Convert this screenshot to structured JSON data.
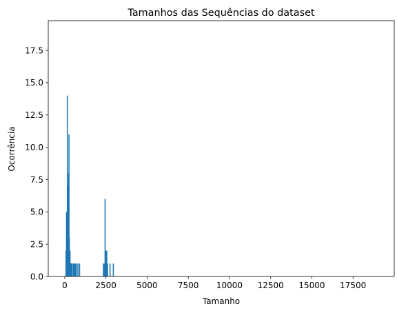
{
  "chart_data": {
    "type": "bar",
    "title": "Tamanhos das Sequências do dataset",
    "xlabel": "Tamanho",
    "ylabel": "Ocorrência",
    "xlim": [
      -1000,
      20000
    ],
    "ylim": [
      0,
      19.8
    ],
    "xticks": [
      0,
      2500,
      5000,
      7500,
      10000,
      12500,
      15000,
      17500
    ],
    "xtick_labels": [
      "0",
      "2500",
      "5000",
      "7500",
      "10000",
      "12500",
      "15000",
      "17500"
    ],
    "yticks": [
      0,
      2.5,
      5,
      7.5,
      10,
      12.5,
      15,
      17.5
    ],
    "ytick_labels": [
      "0.0",
      "2.5",
      "5.0",
      "7.5",
      "10.0",
      "12.5",
      "15.0",
      "17.5"
    ],
    "grid": false,
    "bar_color": "#1f77b4",
    "x": [
      80,
      110,
      140,
      160,
      180,
      200,
      220,
      240,
      260,
      280,
      300,
      320,
      340,
      360,
      380,
      420,
      460,
      540,
      600,
      650,
      700,
      800,
      900,
      2350,
      2400,
      2450,
      2500,
      2550,
      2600,
      2750,
      2950
    ],
    "values": [
      2,
      5,
      4,
      14,
      4,
      2,
      7,
      8,
      11,
      3,
      1,
      2,
      1,
      1,
      1,
      1,
      1,
      1,
      1,
      1,
      1,
      1,
      1,
      1,
      1,
      6,
      2,
      2,
      1,
      1,
      1
    ]
  }
}
